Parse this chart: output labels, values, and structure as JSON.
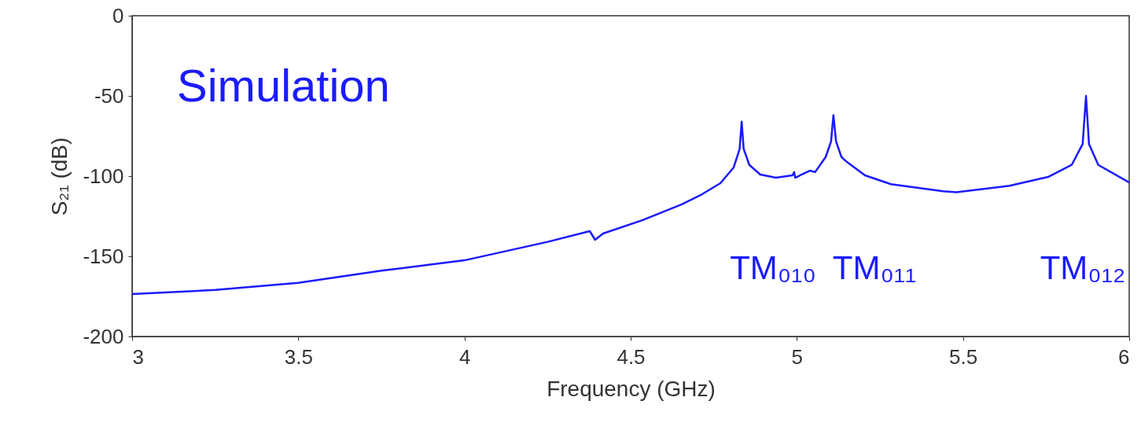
{
  "chart_data": {
    "type": "line",
    "xlabel": "Frequency (GHz)",
    "ylabel": "S₂₁ (dB)",
    "x": [
      3.0,
      3.25,
      3.5,
      3.75,
      4.0,
      4.25,
      4.377,
      4.393,
      4.417,
      4.535,
      4.654,
      4.715,
      4.77,
      4.81,
      4.828,
      4.834,
      4.84,
      4.857,
      4.89,
      4.937,
      4.987,
      4.992,
      4.995,
      5.039,
      5.055,
      5.087,
      5.103,
      5.11,
      5.118,
      5.134,
      5.143,
      5.15,
      5.205,
      5.283,
      5.44,
      5.48,
      5.64,
      5.756,
      5.827,
      5.86,
      5.87,
      5.879,
      5.907,
      6.0
    ],
    "series": [
      {
        "color": "#1a1aff",
        "values": [
          -173.5,
          -171,
          -166.5,
          -159,
          -152.5,
          -141,
          -134.3,
          -139.7,
          -135.8,
          -127.5,
          -117.6,
          -111.3,
          -104.4,
          -94.6,
          -83,
          -66,
          -83,
          -93,
          -99,
          -101,
          -99.5,
          -97.5,
          -101,
          -96.6,
          -97.5,
          -88,
          -78.4,
          -62,
          -78.4,
          -88,
          -89.8,
          -91,
          -99.5,
          -105,
          -109.4,
          -110,
          -106,
          -100.5,
          -93,
          -80,
          -50,
          -80,
          -93,
          -104
        ]
      }
    ],
    "xlim": [
      3,
      6
    ],
    "ylim": [
      -200,
      0
    ],
    "xticks": [
      3,
      3.5,
      4,
      4.5,
      5,
      5.5,
      6
    ],
    "yticks": [
      -200,
      -150,
      -100,
      -50,
      0
    ],
    "grid": false,
    "marker": "none",
    "line_style": "solid",
    "annotations": [
      "Simulation",
      "TM₀₁₀",
      "TM₀₁₁",
      "TM₀₁₂"
    ]
  }
}
